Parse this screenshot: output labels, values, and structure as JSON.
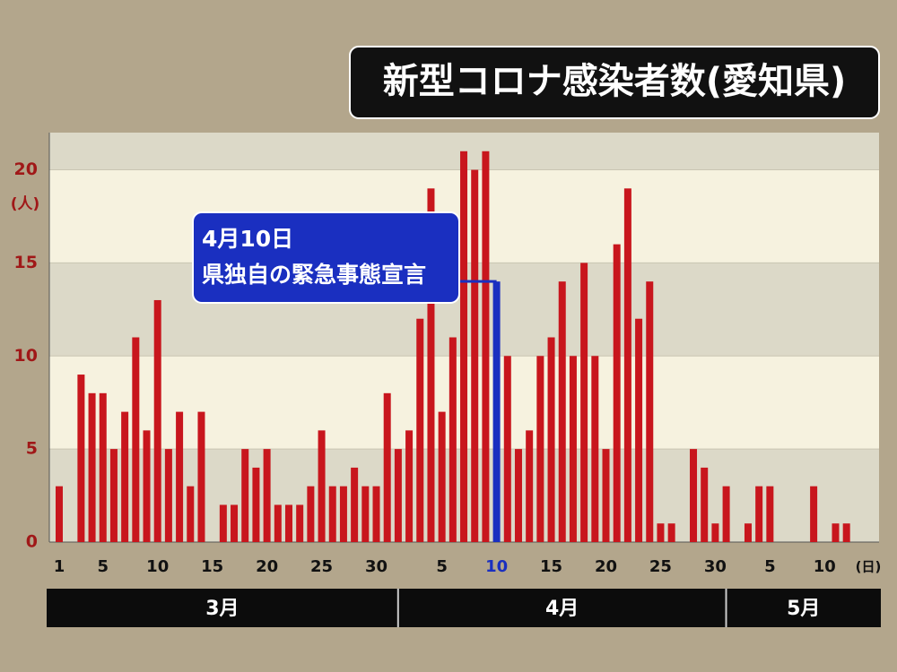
{
  "chart_data": {
    "type": "bar",
    "title": "新型コロナ感染者数(愛知県)",
    "y_label": "(人)",
    "x_label": "(日)",
    "categories": [
      "1",
      null,
      null,
      null,
      "5",
      null,
      null,
      null,
      null,
      "10",
      null,
      null,
      null,
      null,
      "15",
      null,
      null,
      null,
      null,
      "20",
      null,
      null,
      null,
      null,
      "25",
      null,
      null,
      null,
      null,
      "30",
      null,
      null,
      null,
      null,
      null,
      "5",
      null,
      null,
      null,
      null,
      "10",
      null,
      null,
      null,
      null,
      "15",
      null,
      null,
      null,
      null,
      "20",
      null,
      null,
      null,
      null,
      "25",
      null,
      null,
      null,
      null,
      "30",
      null,
      null,
      null,
      null,
      "5",
      null,
      null,
      null,
      null,
      "10",
      null,
      null
    ],
    "values": [
      3,
      0,
      9,
      8,
      8,
      5,
      7,
      11,
      6,
      13,
      5,
      7,
      3,
      7,
      0,
      2,
      2,
      5,
      4,
      5,
      2,
      2,
      2,
      3,
      6,
      3,
      3,
      4,
      3,
      3,
      8,
      5,
      6,
      12,
      19,
      7,
      11,
      21,
      20,
      21,
      14,
      10,
      5,
      6,
      10,
      11,
      14,
      10,
      15,
      10,
      5,
      16,
      19,
      12,
      14,
      1,
      1,
      0,
      5,
      4,
      1,
      3,
      0,
      1,
      3,
      3,
      0,
      0,
      0,
      3,
      0,
      1,
      1
    ],
    "colors": [
      "#c8161d",
      "#c8161d",
      "#c8161d",
      "#c8161d",
      "#c8161d",
      "#c8161d",
      "#c8161d",
      "#c8161d",
      "#c8161d",
      "#c8161d",
      "#c8161d",
      "#c8161d",
      "#c8161d",
      "#c8161d",
      "#c8161d",
      "#c8161d",
      "#c8161d",
      "#c8161d",
      "#c8161d",
      "#c8161d",
      "#c8161d",
      "#c8161d",
      "#c8161d",
      "#c8161d",
      "#c8161d",
      "#c8161d",
      "#c8161d",
      "#c8161d",
      "#c8161d",
      "#c8161d",
      "#c8161d",
      "#c8161d",
      "#c8161d",
      "#c8161d",
      "#c8161d",
      "#c8161d",
      "#c8161d",
      "#c8161d",
      "#c8161d",
      "#c8161d",
      "#1a2fc0",
      "#c8161d",
      "#c8161d",
      "#c8161d",
      "#c8161d",
      "#c8161d",
      "#c8161d",
      "#c8161d",
      "#c8161d",
      "#c8161d",
      "#c8161d",
      "#c8161d",
      "#c8161d",
      "#c8161d",
      "#c8161d",
      "#c8161d",
      "#c8161d",
      "#c8161d",
      "#c8161d",
      "#c8161d",
      "#c8161d",
      "#c8161d",
      "#c8161d",
      "#c8161d",
      "#c8161d",
      "#c8161d",
      "#c8161d",
      "#c8161d",
      "#c8161d",
      "#c8161d",
      "#c8161d",
      "#c8161d",
      "#c8161d"
    ],
    "ylim": [
      0,
      22
    ],
    "yticks": [
      0,
      5,
      10,
      15,
      20
    ],
    "grid": true,
    "months": [
      "3月",
      "4月",
      "5月"
    ],
    "annotation": {
      "lines": [
        "4月10日",
        "県独自の緊急事態宣言"
      ],
      "color": "#1a2fc0"
    }
  }
}
